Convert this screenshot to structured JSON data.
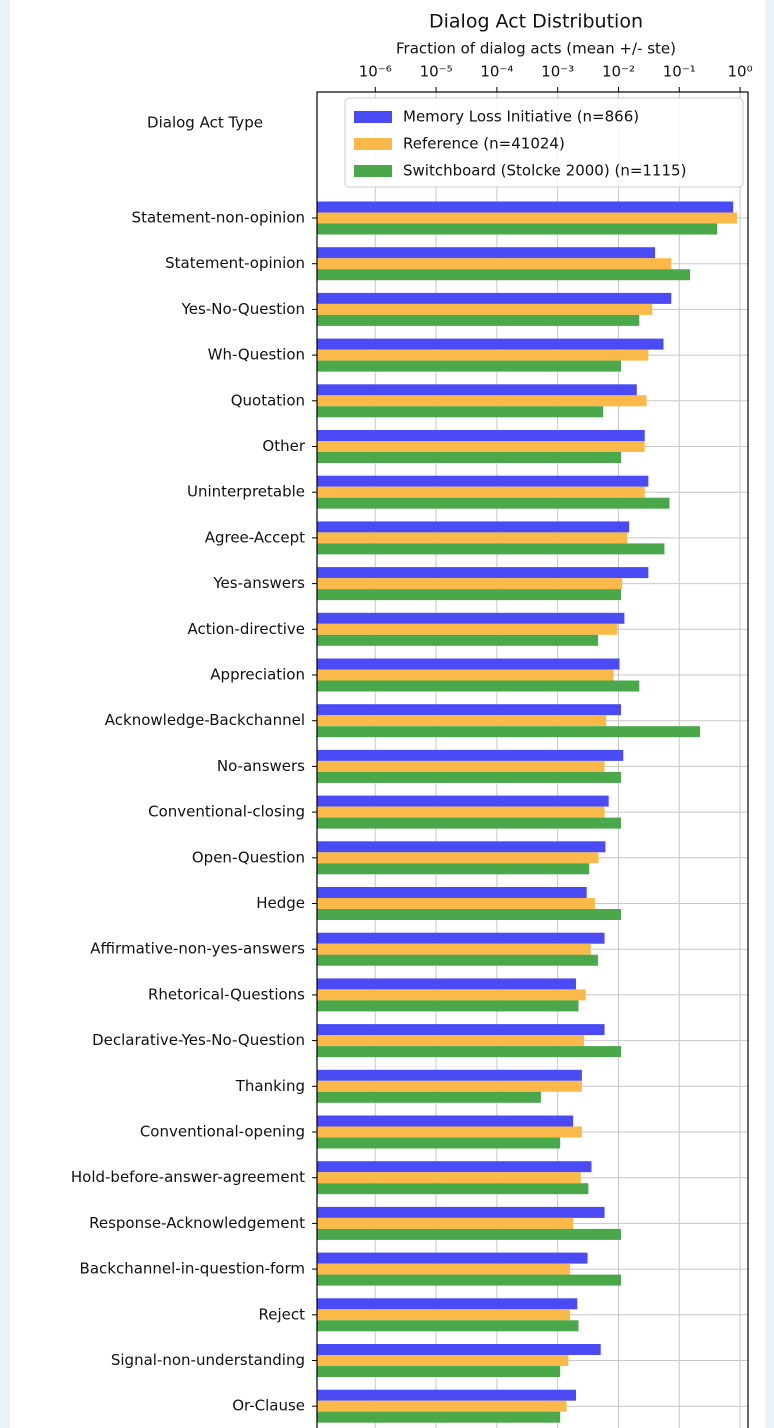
{
  "chart_data": {
    "type": "barh",
    "title": "Dialog Act Distribution",
    "xlabel": "Fraction of dialog acts (mean +/- ste)",
    "ylabel": "Dialog Act Type",
    "log_x": true,
    "grid": true,
    "legend": "upper right",
    "xlim": [
      1.1e-07,
      1.35
    ],
    "xticks": [
      {
        "value": 1e-06,
        "label": "10⁻⁶"
      },
      {
        "value": 1e-05,
        "label": "10⁻⁵"
      },
      {
        "value": 0.0001,
        "label": "10⁻⁴"
      },
      {
        "value": 0.001,
        "label": "10⁻³"
      },
      {
        "value": 0.01,
        "label": "10⁻²"
      },
      {
        "value": 0.1,
        "label": "10⁻¹"
      },
      {
        "value": 1,
        "label": "10⁰"
      }
    ],
    "categories": [
      "Statement-non-opinion",
      "Statement-opinion",
      "Yes-No-Question",
      "Wh-Question",
      "Quotation",
      "Other",
      "Uninterpretable",
      "Agree-Accept",
      "Yes-answers",
      "Action-directive",
      "Appreciation",
      "Acknowledge-Backchannel",
      "No-answers",
      "Conventional-closing",
      "Open-Question",
      "Hedge",
      "Affirmative-non-yes-answers",
      "Rhetorical-Questions",
      "Declarative-Yes-No-Question",
      "Thanking",
      "Conventional-opening",
      "Hold-before-answer-agreement",
      "Response-Acknowledgement",
      "Backchannel-in-question-form",
      "Reject",
      "Signal-non-understanding",
      "Or-Clause"
    ],
    "series": [
      {
        "name": "Memory Loss Initiative (n=866)",
        "color": "#4b4bf5",
        "values": [
          0.77,
          0.04,
          0.074,
          0.055,
          0.02,
          0.027,
          0.031,
          0.015,
          0.031,
          0.0125,
          0.0104,
          0.011,
          0.012,
          0.0069,
          0.0061,
          0.003,
          0.0059,
          0.002,
          0.0059,
          0.0025,
          0.0018,
          0.0036,
          0.0059,
          0.0031,
          0.0021,
          0.0051,
          0.002
        ]
      },
      {
        "name": "Reference (n=41024)",
        "color": "#fbb94a",
        "values": [
          0.89,
          0.074,
          0.036,
          0.031,
          0.029,
          0.027,
          0.027,
          0.014,
          0.0115,
          0.0096,
          0.0083,
          0.0063,
          0.0059,
          0.0059,
          0.0047,
          0.0041,
          0.0035,
          0.0029,
          0.0027,
          0.0025,
          0.0025,
          0.0024,
          0.0018,
          0.0016,
          0.0016,
          0.0015,
          0.0014
        ]
      },
      {
        "name": "Switchboard (Stolcke 2000) (n=1115)",
        "color": "#4aa84a",
        "values": [
          0.42,
          0.15,
          0.022,
          0.011,
          0.0056,
          0.011,
          0.069,
          0.057,
          0.011,
          0.0046,
          0.022,
          0.22,
          0.011,
          0.011,
          0.0033,
          0.011,
          0.0046,
          0.0022,
          0.011,
          0.00053,
          0.0011,
          0.0032,
          0.011,
          0.011,
          0.0022,
          0.0011,
          0.0011
        ]
      }
    ]
  }
}
